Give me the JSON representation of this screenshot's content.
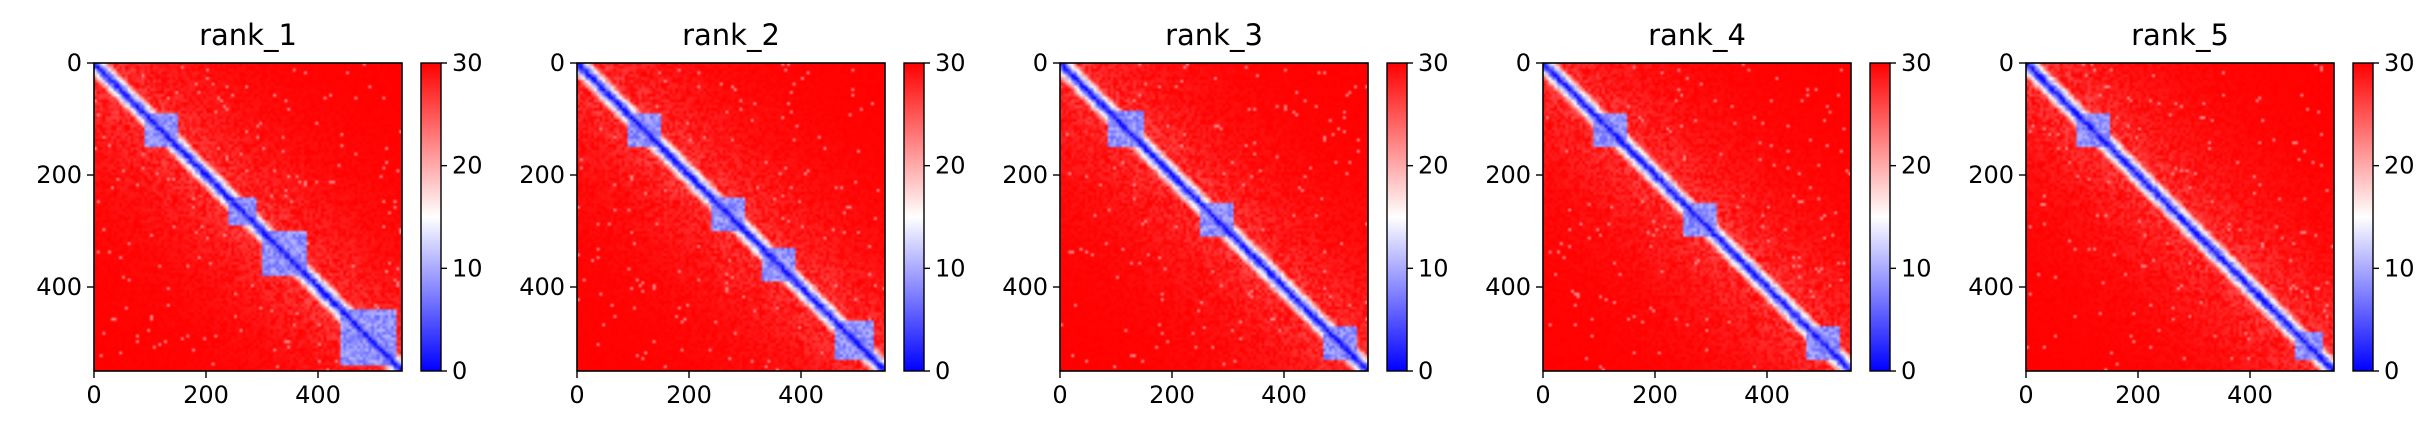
{
  "figure": {
    "colorscale": {
      "low": "#0000ff",
      "mid": "#ffffff",
      "high": "#ff0000"
    }
  },
  "chart_data": [
    {
      "type": "heatmap",
      "title": "rank_1",
      "n": 550,
      "xlim": [
        0,
        550
      ],
      "ylim": [
        550,
        0
      ],
      "xticks": [
        0,
        200,
        400
      ],
      "yticks": [
        0,
        200,
        400
      ],
      "colorbar": {
        "min": 0,
        "max": 30,
        "ticks": [
          0,
          10,
          20,
          30
        ]
      },
      "domains": [
        [
          90,
          150
        ],
        [
          240,
          290
        ],
        [
          300,
          380
        ],
        [
          440,
          540
        ]
      ]
    },
    {
      "type": "heatmap",
      "title": "rank_2",
      "n": 550,
      "xlim": [
        0,
        550
      ],
      "ylim": [
        550,
        0
      ],
      "xticks": [
        0,
        200,
        400
      ],
      "yticks": [
        0,
        200,
        400
      ],
      "colorbar": {
        "min": 0,
        "max": 30,
        "ticks": [
          0,
          10,
          20,
          30
        ]
      },
      "domains": [
        [
          90,
          150
        ],
        [
          240,
          300
        ],
        [
          330,
          390
        ],
        [
          460,
          530
        ]
      ]
    },
    {
      "type": "heatmap",
      "title": "rank_3",
      "n": 550,
      "xlim": [
        0,
        550
      ],
      "ylim": [
        550,
        0
      ],
      "xticks": [
        0,
        200,
        400
      ],
      "yticks": [
        0,
        200,
        400
      ],
      "colorbar": {
        "min": 0,
        "max": 30,
        "ticks": [
          0,
          10,
          20,
          30
        ]
      },
      "domains": [
        [
          85,
          150
        ],
        [
          250,
          310
        ],
        [
          470,
          530
        ]
      ]
    },
    {
      "type": "heatmap",
      "title": "rank_4",
      "n": 550,
      "xlim": [
        0,
        550
      ],
      "ylim": [
        550,
        0
      ],
      "xticks": [
        0,
        200,
        400
      ],
      "yticks": [
        0,
        200,
        400
      ],
      "colorbar": {
        "min": 0,
        "max": 30,
        "ticks": [
          0,
          10,
          20,
          30
        ]
      },
      "domains": [
        [
          90,
          150
        ],
        [
          250,
          310
        ],
        [
          470,
          530
        ]
      ]
    },
    {
      "type": "heatmap",
      "title": "rank_5",
      "n": 550,
      "xlim": [
        0,
        550
      ],
      "ylim": [
        550,
        0
      ],
      "xticks": [
        0,
        200,
        400
      ],
      "yticks": [
        0,
        200,
        400
      ],
      "colorbar": {
        "min": 0,
        "max": 30,
        "ticks": [
          0,
          10,
          20,
          30
        ]
      },
      "domains": [
        [
          90,
          150
        ],
        [
          480,
          530
        ]
      ]
    }
  ]
}
